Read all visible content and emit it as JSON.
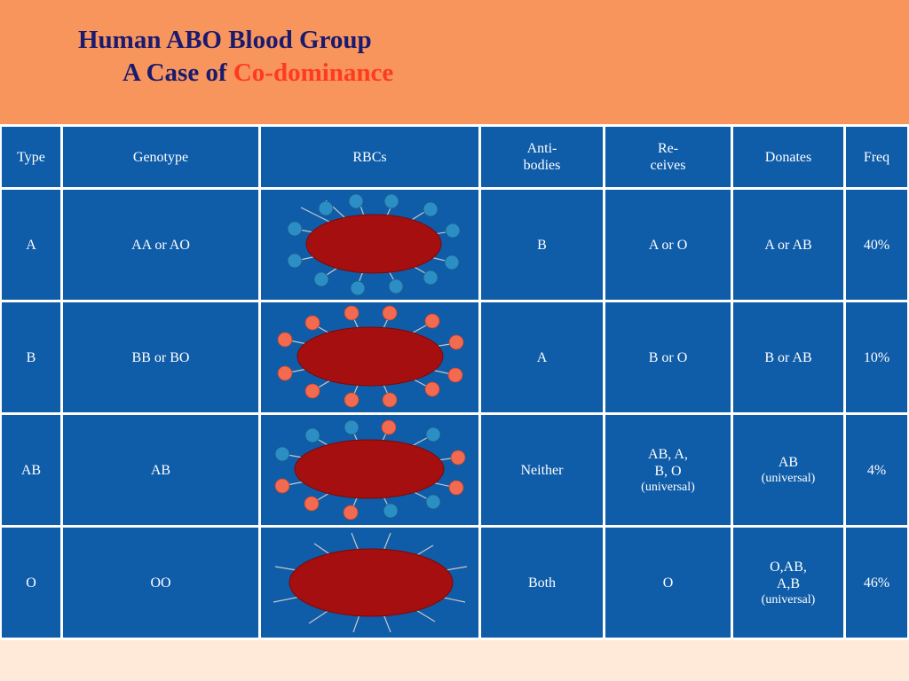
{
  "title": {
    "line1": "Human ABO Blood Group",
    "line2_prefix": "A Case of ",
    "line2_accent": "Co-dominance"
  },
  "colors": {
    "header_bg": "#f7955c",
    "title": "#1a1a6e",
    "accent": "#ff3b1f",
    "cell_bg": "#0f5ca8",
    "rbc_fill": "#a50f0f",
    "antigen_a": "#2b8fc5",
    "antigen_b": "#f26a4f",
    "page_bg": "#ffe9d9"
  },
  "table": {
    "headers": {
      "type": "Type",
      "genotype": "Genotype",
      "rbcs": "RBCs",
      "antibodies": "Anti-\nbodies",
      "receives": "Re-\nceives",
      "donates": "Donates",
      "freq": "Freq"
    },
    "rows": [
      {
        "type": "A",
        "genotype": "AA or AO",
        "rbc_antigens": "A",
        "antibodies": "B",
        "receives": "A or O",
        "receives_note": "",
        "donates": "A or AB",
        "donates_note": "",
        "freq": "40%"
      },
      {
        "type": "B",
        "genotype": "BB or BO",
        "rbc_antigens": "B",
        "antibodies": "A",
        "receives": "B or O",
        "receives_note": "",
        "donates": "B or AB",
        "donates_note": "",
        "freq": "10%"
      },
      {
        "type": "AB",
        "genotype": "AB",
        "rbc_antigens": "AB",
        "antibodies": "Neither",
        "receives": "AB, A,\nB, O",
        "receives_note": "(universal)",
        "donates": "AB",
        "donates_note": "(universal)",
        "freq": "4%"
      },
      {
        "type": "O",
        "genotype": "OO",
        "rbc_antigens": "none",
        "antibodies": "Both",
        "receives": "O",
        "receives_note": "",
        "donates": "O,AB,\nA,B",
        "donates_note": "(universal)",
        "freq": "46%"
      }
    ]
  }
}
